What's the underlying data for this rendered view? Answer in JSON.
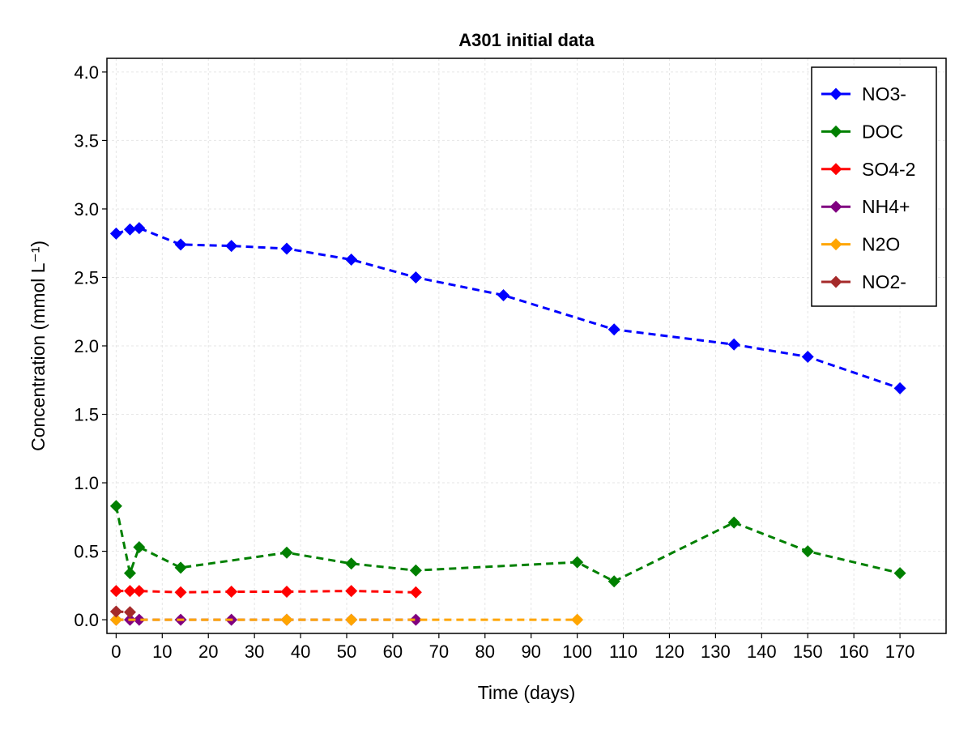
{
  "chart_data": {
    "type": "line",
    "title": "A301 initial data",
    "xlabel": "Time (days)",
    "ylabel": "Concentration (mmol L⁻¹)",
    "xlim": [
      -2,
      180
    ],
    "ylim": [
      -0.1,
      4.1
    ],
    "xticks": [
      0,
      10,
      20,
      30,
      40,
      50,
      60,
      70,
      80,
      90,
      100,
      110,
      120,
      130,
      140,
      150,
      160,
      170
    ],
    "yticks": [
      0.0,
      0.5,
      1.0,
      1.5,
      2.0,
      2.5,
      3.0,
      3.5,
      4.0
    ],
    "ytick_labels": [
      "0.0",
      "0.5",
      "1.0",
      "1.5",
      "2.0",
      "2.5",
      "3.0",
      "3.5",
      "4.0"
    ],
    "grid": true,
    "legend_position": "top-right",
    "series": [
      {
        "name": "NO3-",
        "color": "#0000ff",
        "marker": "diamond",
        "line": "dashed",
        "x": [
          0,
          3,
          5,
          14,
          25,
          37,
          51,
          65,
          84,
          108,
          134,
          150,
          170
        ],
        "y": [
          2.82,
          2.85,
          2.86,
          2.74,
          2.73,
          2.71,
          2.63,
          2.5,
          2.37,
          2.12,
          2.01,
          1.92,
          1.69
        ]
      },
      {
        "name": "DOC",
        "color": "#008000",
        "marker": "diamond",
        "line": "dashed",
        "x": [
          0,
          3,
          5,
          14,
          37,
          51,
          65,
          100,
          108,
          134,
          150,
          170
        ],
        "y": [
          0.83,
          0.34,
          0.53,
          0.38,
          0.49,
          0.41,
          0.36,
          0.42,
          0.28,
          0.71,
          0.5,
          0.34
        ]
      },
      {
        "name": "SO4-2",
        "color": "#ff0000",
        "marker": "diamond",
        "line": "dashed",
        "x": [
          0,
          3,
          5,
          14,
          25,
          37,
          51,
          65
        ],
        "y": [
          0.21,
          0.21,
          0.21,
          0.2,
          0.205,
          0.205,
          0.21,
          0.2
        ]
      },
      {
        "name": "NH4+",
        "color": "#800080",
        "marker": "diamond",
        "line": "dashed",
        "x": [
          0,
          3,
          5,
          14,
          25,
          37,
          51,
          65
        ],
        "y": [
          0.0,
          0.0,
          0.0,
          0.0,
          0.0,
          0.0,
          0.0,
          0.0
        ]
      },
      {
        "name": "N2O",
        "color": "#ffa500",
        "marker": "diamond",
        "line": "dashed",
        "x": [
          0,
          37,
          51,
          100
        ],
        "y": [
          0.0,
          0.0,
          0.0,
          0.0
        ]
      },
      {
        "name": "NO2-",
        "color": "#a52a2a",
        "marker": "diamond",
        "line": "dashed",
        "x": [
          0,
          3
        ],
        "y": [
          0.06,
          0.055
        ]
      }
    ]
  }
}
